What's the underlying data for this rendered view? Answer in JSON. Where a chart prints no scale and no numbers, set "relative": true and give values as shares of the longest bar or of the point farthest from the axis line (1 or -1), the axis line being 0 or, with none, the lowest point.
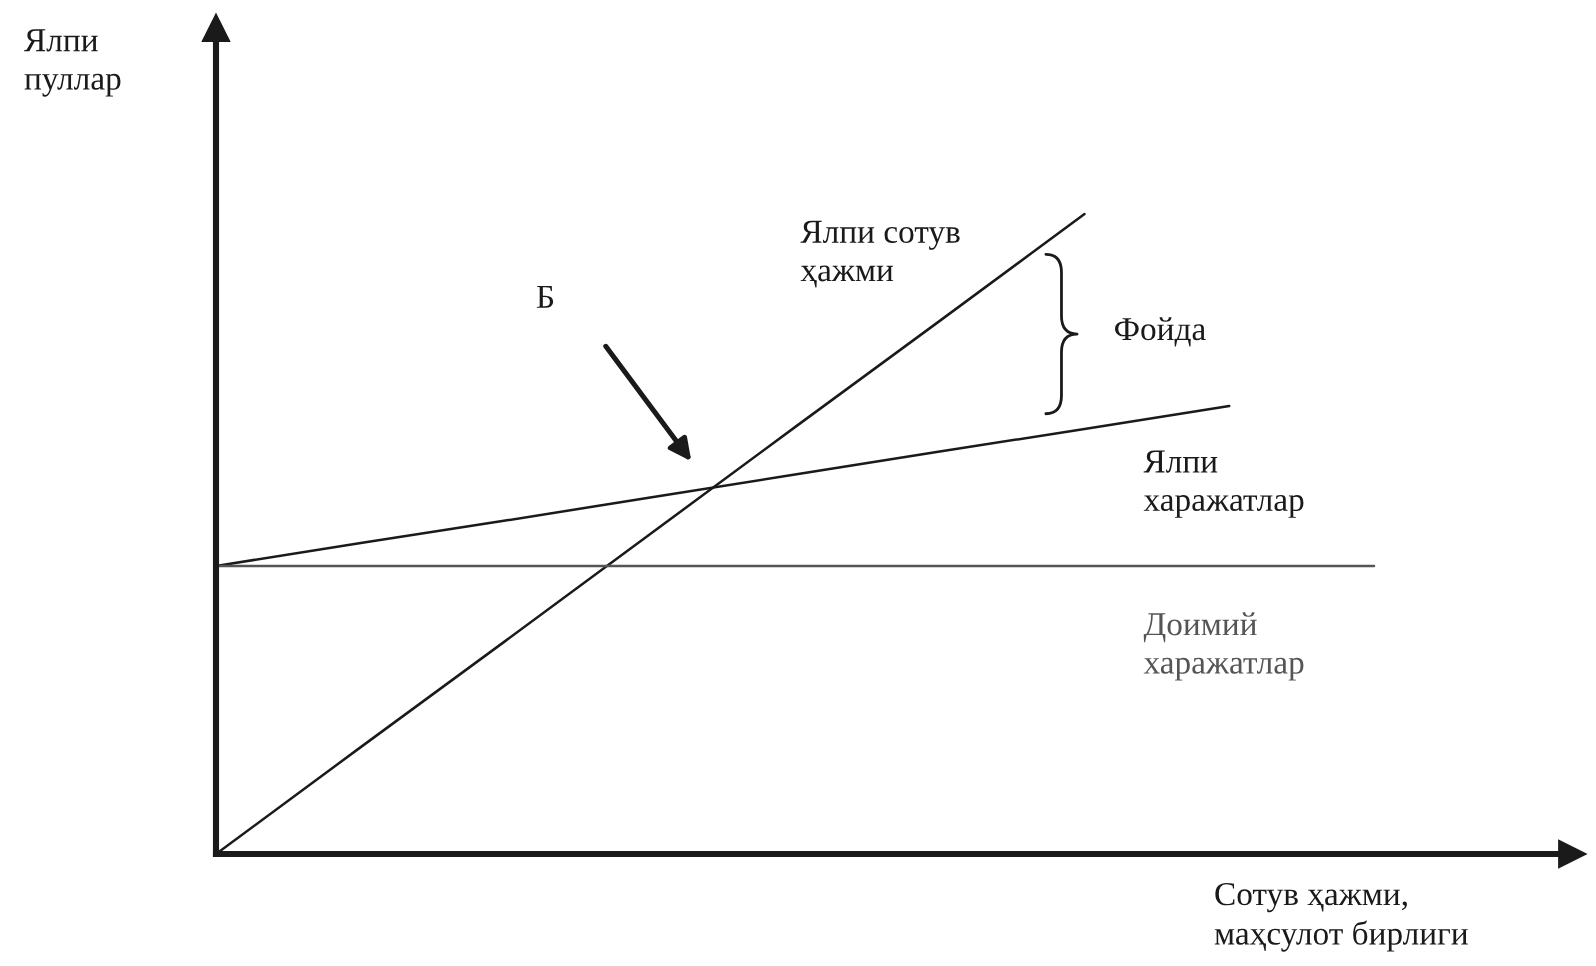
{
  "chart_data": {
    "type": "line",
    "relative": true,
    "line_style": "solid",
    "ylabel": "Ялпи пуллар",
    "xlabel": "Сотув ҳажми, маҳсулот бирлиги",
    "categories": [
      null,
      null,
      null,
      null,
      null,
      null,
      null,
      null,
      null
    ],
    "series": [
      {
        "name": "Ялпи сотув ҳажми",
        "color": "#1a1a1a",
        "values": [
          0,
          0.167,
          0.333,
          0.5,
          0.667,
          0.833,
          1,
          null,
          null
        ]
      },
      {
        "name": "Ялпи харажатлар",
        "color": "#1a1a1a",
        "values": [
          0.45,
          0.486,
          0.521,
          0.557,
          0.593,
          0.629,
          0.664,
          0.7,
          null
        ]
      },
      {
        "name": "Доимий харажатлар",
        "color": "#555555",
        "values": [
          0.45,
          0.45,
          0.45,
          0.45,
          0.45,
          0.45,
          0.45,
          0.45,
          0.45
        ]
      }
    ],
    "annotations": [
      "Б",
      "Фойда"
    ]
  }
}
